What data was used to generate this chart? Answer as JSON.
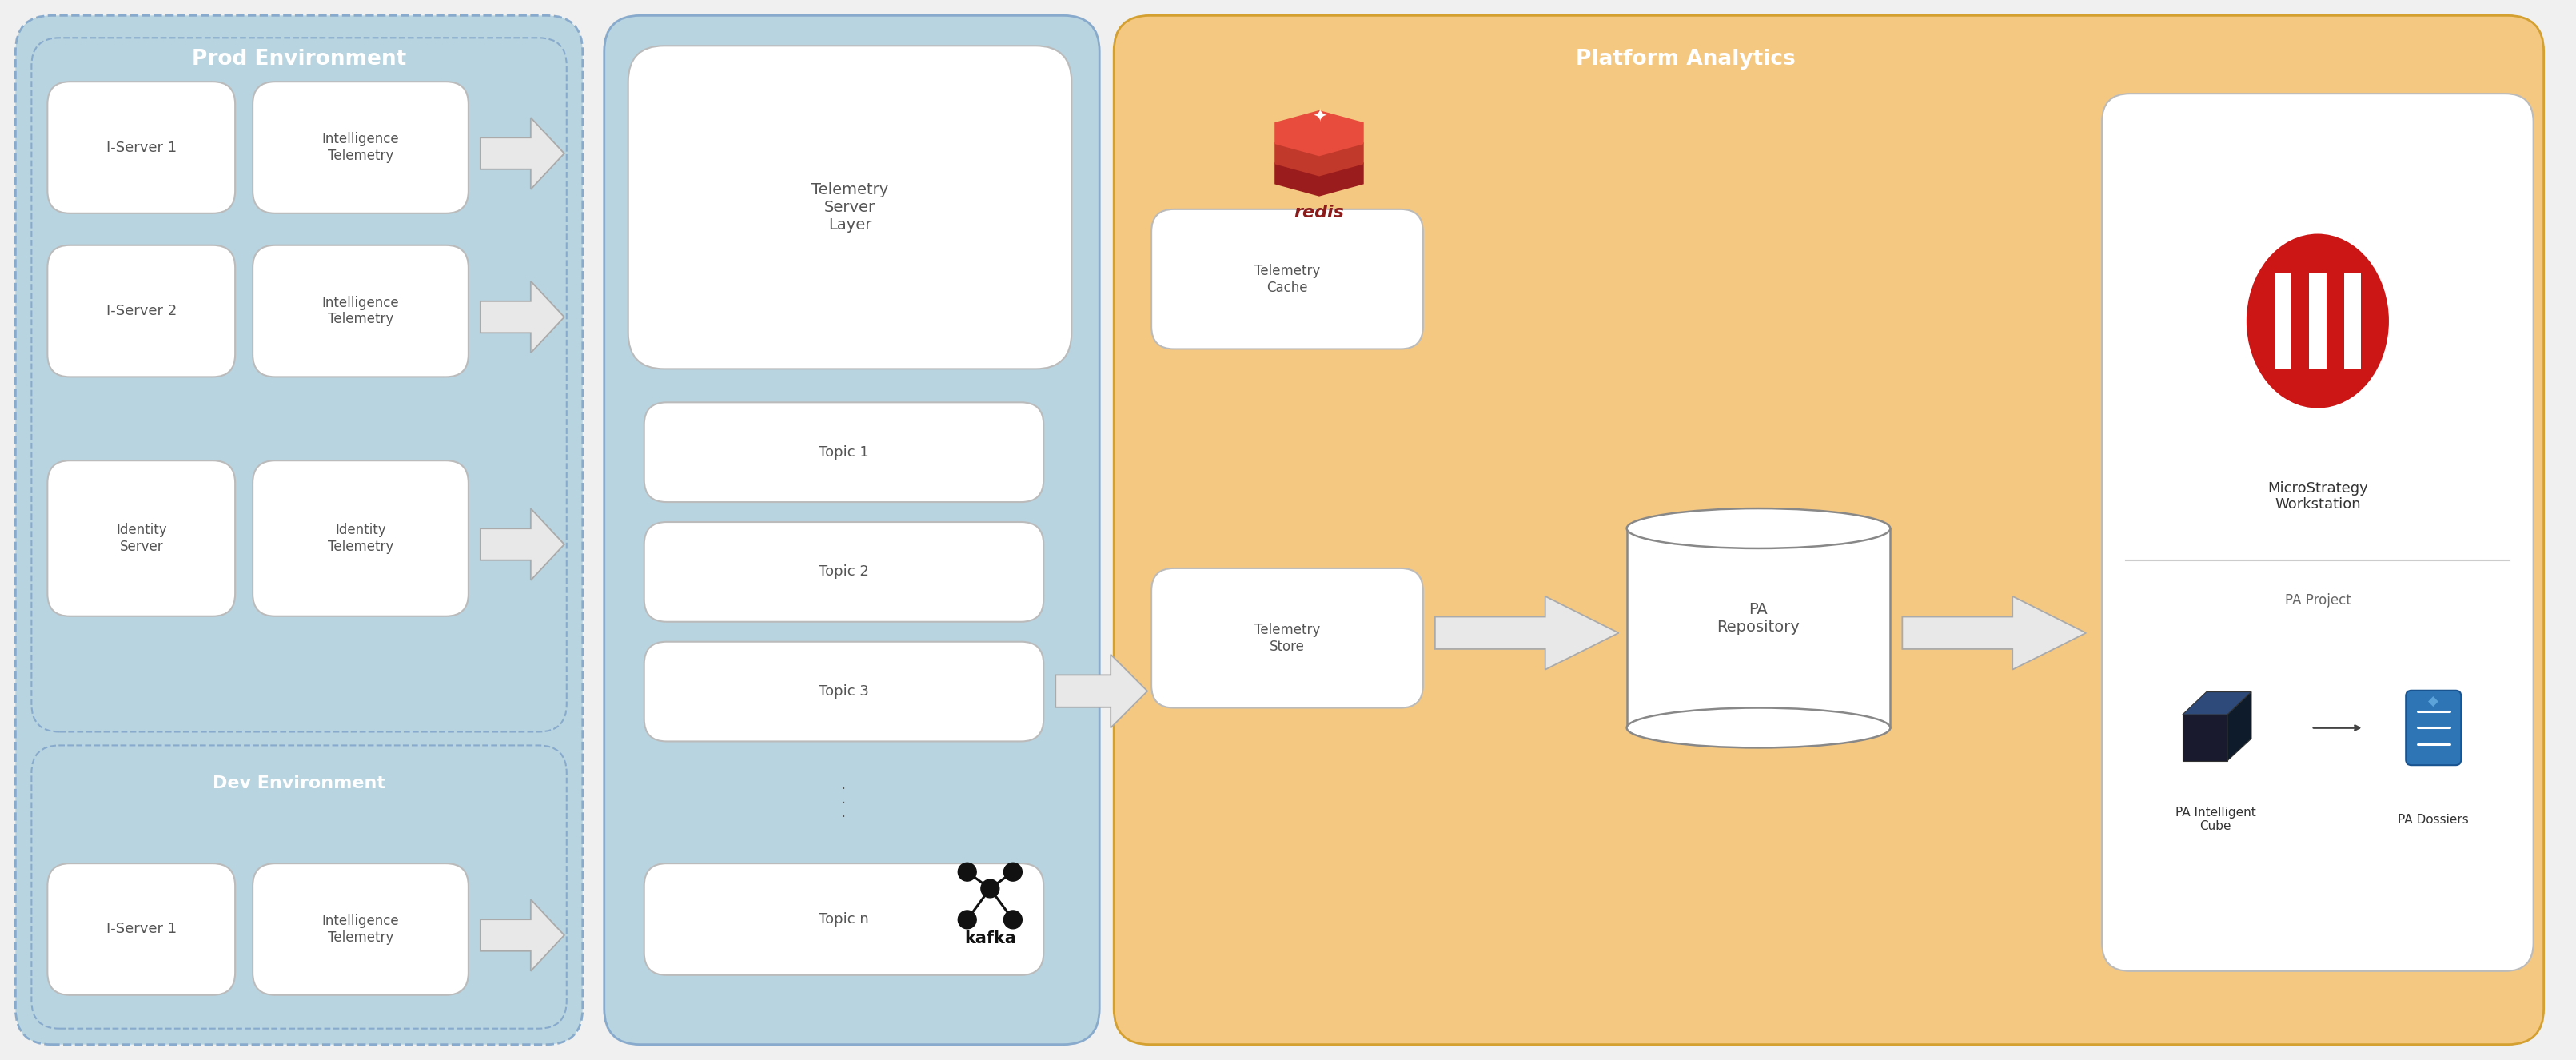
{
  "fig_width": 32.22,
  "fig_height": 13.26,
  "bg_color": "#f0f0f0",
  "prod_env_bg": "#b8d4e0",
  "telemetry_server_bg": "#b8d4e0",
  "platform_analytics_bg": "#f5c882",
  "box_bg": "#ffffff",
  "prod_title": "Prod Environment",
  "tel_server_title": "Telemetry Server",
  "platform_title": "Platform Analytics",
  "dev_title": "Dev Environment",
  "title_color_white": "#ffffff",
  "text_dark": "#555555",
  "text_black": "#222222",
  "arrow_fill": "#e8e8e8",
  "arrow_edge": "#aaaaaa",
  "panel_edge_blue": "#88aacc",
  "panel_edge_orange": "#d4a030"
}
